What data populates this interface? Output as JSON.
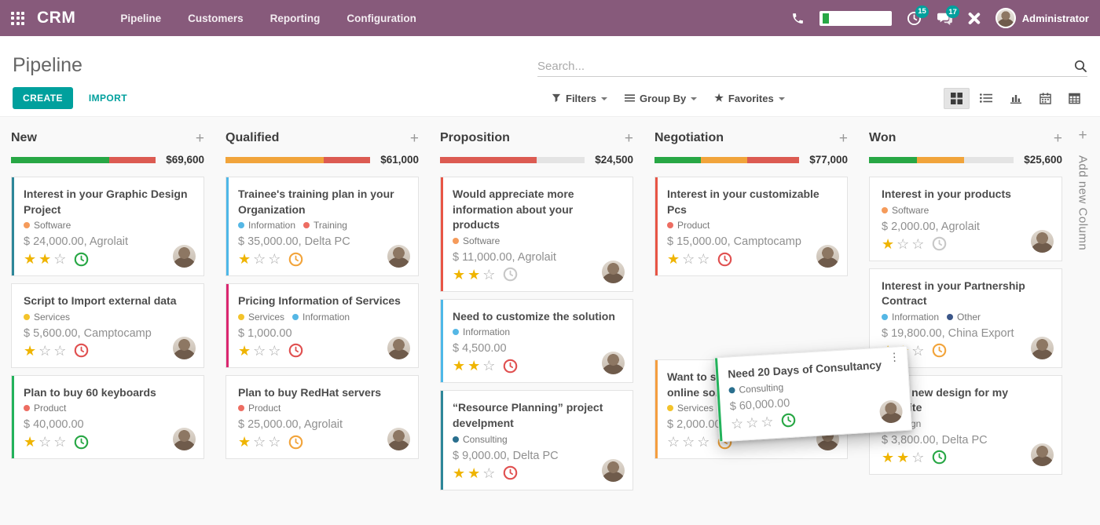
{
  "app": {
    "name": "CRM",
    "menus": [
      "Pipeline",
      "Customers",
      "Reporting",
      "Configuration"
    ],
    "user": "Administrator",
    "badges": {
      "activities": "15",
      "messages": "17"
    }
  },
  "control_panel": {
    "title": "Pipeline",
    "create_label": "CREATE",
    "import_label": "IMPORT",
    "search_placeholder": "Search...",
    "filters_label": "Filters",
    "group_by_label": "Group By",
    "favorites_label": "Favorites"
  },
  "palette": {
    "topbar": "#875A7B",
    "accent_teal": "#00A09D",
    "bar_green": "#28A745",
    "bar_orange": "#F1A43B",
    "bar_red": "#DC5B52",
    "bar_grey": "#E4E4E4",
    "tag_orange": "#F59B5B",
    "tag_yellow": "#F3C32B",
    "tag_red": "#ED6D62",
    "tag_blue": "#55B7E5",
    "tag_teal": "#2A6F8E",
    "tag_navy": "#3C5789",
    "tag_purple": "#73415F",
    "stripe_teal": "#2E8799",
    "stripe_green": "#23B25B",
    "stripe_blue": "#4EB8E8",
    "stripe_pink": "#DB2770",
    "stripe_red": "#E85545",
    "stripe_orange": "#F59E3F",
    "clock_green": "#28A745",
    "clock_red": "#E05050",
    "clock_orange": "#F2A43B",
    "clock_grey": "#C8C8C8",
    "star_gold": "#EFB400"
  },
  "board": {
    "add_column_label": "Add new Column",
    "columns": [
      {
        "name": "New",
        "total": "$69,600",
        "bar": [
          {
            "color": "bar_green",
            "pct": 68
          },
          {
            "color": "bar_red",
            "pct": 32
          }
        ],
        "cards": [
          {
            "title": "Interest in your Graphic Design Project",
            "stripe": "stripe_teal",
            "tags": [
              {
                "label": "Software",
                "color": "tag_orange"
              }
            ],
            "amount": "$ 24,000.00, Agrolait",
            "stars": 2,
            "clock": "clock_green"
          },
          {
            "title": "Script to Import external data",
            "stripe": null,
            "tags": [
              {
                "label": "Services",
                "color": "tag_yellow"
              }
            ],
            "amount": "$ 5,600.00, Camptocamp",
            "stars": 1,
            "clock": "clock_red"
          },
          {
            "title": "Plan to buy 60 keyboards",
            "stripe": "stripe_green",
            "tags": [
              {
                "label": "Product",
                "color": "tag_red"
              }
            ],
            "amount": "$ 40,000.00",
            "stars": 1,
            "clock": "clock_green"
          }
        ]
      },
      {
        "name": "Qualified",
        "total": "$61,000",
        "bar": [
          {
            "color": "bar_orange",
            "pct": 68
          },
          {
            "color": "bar_red",
            "pct": 32
          }
        ],
        "cards": [
          {
            "title": "Trainee's training plan in your Organization",
            "stripe": "stripe_blue",
            "tags": [
              {
                "label": "Information",
                "color": "tag_blue"
              },
              {
                "label": "Training",
                "color": "tag_red"
              }
            ],
            "amount": "$ 35,000.00, Delta PC",
            "stars": 1,
            "clock": "clock_orange"
          },
          {
            "title": "Pricing Information of Services",
            "stripe": "stripe_pink",
            "tags": [
              {
                "label": "Services",
                "color": "tag_yellow"
              },
              {
                "label": "Information",
                "color": "tag_blue"
              }
            ],
            "amount": "$ 1,000.00",
            "stars": 1,
            "clock": "clock_red"
          },
          {
            "title": "Plan to buy RedHat servers",
            "stripe": null,
            "tags": [
              {
                "label": "Product",
                "color": "tag_red"
              }
            ],
            "amount": "$ 25,000.00, Agrolait",
            "stars": 1,
            "clock": "clock_orange"
          }
        ]
      },
      {
        "name": "Proposition",
        "total": "$24,500",
        "bar": [
          {
            "color": "bar_red",
            "pct": 67
          }
        ],
        "cards": [
          {
            "title": "Would appreciate more information about your products",
            "stripe": "stripe_red",
            "tags": [
              {
                "label": "Software",
                "color": "tag_orange"
              }
            ],
            "amount": "$ 11,000.00, Agrolait",
            "stars": 2,
            "clock": "clock_grey"
          },
          {
            "title": "Need to customize the solution",
            "stripe": "stripe_blue",
            "tags": [
              {
                "label": "Information",
                "color": "tag_blue"
              }
            ],
            "amount": "$ 4,500.00",
            "stars": 2,
            "clock": "clock_red"
          },
          {
            "title": "“Resource Planning” project develpment",
            "stripe": "stripe_teal",
            "tags": [
              {
                "label": "Consulting",
                "color": "tag_teal"
              }
            ],
            "amount": "$ 9,000.00, Delta PC",
            "stars": 2,
            "clock": "clock_red"
          }
        ]
      },
      {
        "name": "Negotiation",
        "total": "$77,000",
        "bar": [
          {
            "color": "bar_green",
            "pct": 32
          },
          {
            "color": "bar_orange",
            "pct": 32
          },
          {
            "color": "bar_red",
            "pct": 36
          }
        ],
        "spacer_after": 0,
        "cards": [
          {
            "title": "Interest in your customizable Pcs",
            "stripe": "stripe_red",
            "tags": [
              {
                "label": "Product",
                "color": "tag_red"
              }
            ],
            "amount": "$ 15,000.00, Camptocamp",
            "stars": 1,
            "clock": "clock_red"
          },
          {
            "title": "Want to subscribe to your online solution",
            "stripe": "stripe_orange",
            "tags": [
              {
                "label": "Services",
                "color": "tag_yellow"
              }
            ],
            "amount": "$ 2,000.00, Think Big",
            "stars": 0,
            "clock": "clock_orange"
          }
        ]
      },
      {
        "name": "Won",
        "total": "$25,600",
        "bar": [
          {
            "color": "bar_green",
            "pct": 33
          },
          {
            "color": "bar_orange",
            "pct": 33
          }
        ],
        "cards": [
          {
            "title": "Interest in your products",
            "stripe": null,
            "tags": [
              {
                "label": "Software",
                "color": "tag_orange"
              }
            ],
            "amount": "$ 2,000.00, Agrolait",
            "stars": 1,
            "clock": "clock_grey"
          },
          {
            "title": "Interest in your Partnership Contract",
            "stripe": null,
            "tags": [
              {
                "label": "Information",
                "color": "tag_blue"
              },
              {
                "label": "Other",
                "color": "tag_navy"
              }
            ],
            "amount": "$ 19,800.00, China Export",
            "stars": 2,
            "clock": "clock_orange"
          },
          {
            "title": "Need new design for my website",
            "stripe": null,
            "tags": [
              {
                "label": "Design",
                "color": "tag_purple"
              }
            ],
            "amount": "$ 3,800.00, Delta PC",
            "stars": 2,
            "clock": "clock_green"
          }
        ]
      }
    ],
    "dragged_card": {
      "title": "Need 20 Days of Consultancy",
      "stripe": "stripe_green",
      "tags": [
        {
          "label": "Consulting",
          "color": "tag_teal"
        }
      ],
      "amount": "$ 60,000.00",
      "stars": 0,
      "clock": "clock_green",
      "menu_icon": "⋮"
    }
  }
}
